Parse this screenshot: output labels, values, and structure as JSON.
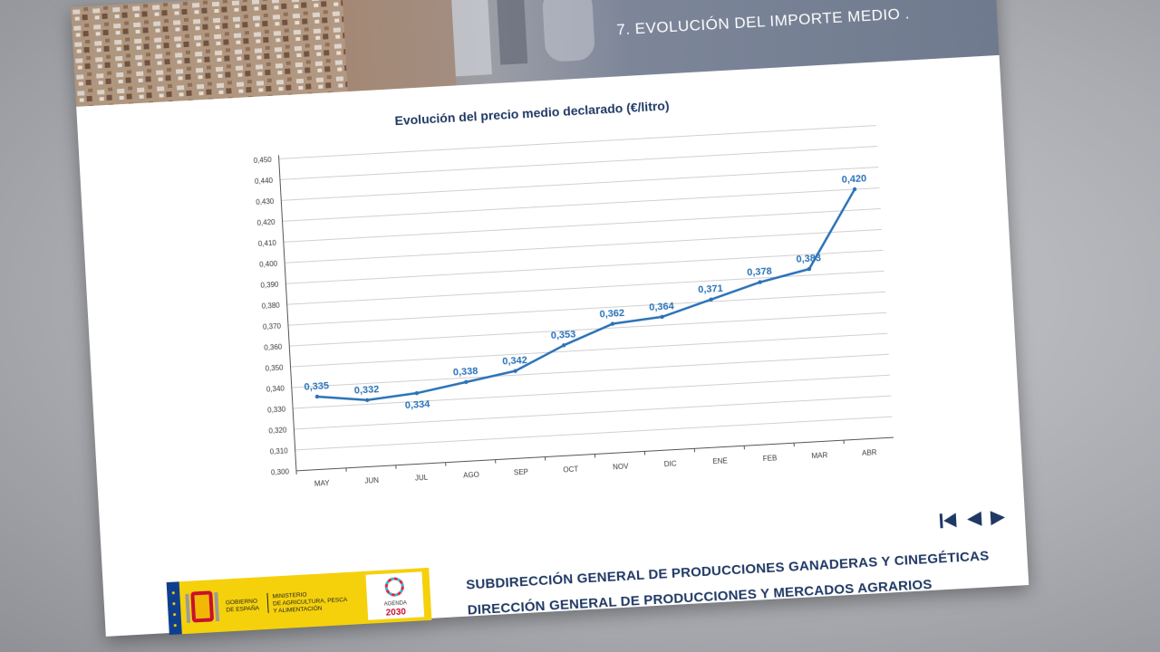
{
  "header": {
    "title": "7.  EVOLUCIÓN DEL IMPORTE MEDIO ."
  },
  "footer": {
    "line1": "SUBDIRECCIÓN GENERAL DE PRODUCCIONES GANADERAS Y CINEGÉTICAS",
    "line2": "DIRECCIÓN GENERAL DE PRODUCCIONES Y MERCADOS AGRARIOS"
  },
  "logo": {
    "gobierno": [
      "GOBIERNO",
      "DE ESPAÑA"
    ],
    "ministerio": [
      "MINISTERIO",
      "DE AGRICULTURA, PESCA",
      "Y ALIMENTACIÓN"
    ],
    "agenda": [
      "AGENDA",
      "2030"
    ]
  },
  "nav": {
    "icons": [
      "first-page-icon",
      "previous-page-icon",
      "next-page-icon"
    ]
  },
  "colors": {
    "line": "#2a72b8",
    "title": "#1f3864",
    "header_bg": "#7c8597",
    "logo_yellow": "#f5d10c"
  },
  "chart_data": {
    "type": "line",
    "title": "Evolución del precio medio declarado (€/litro)",
    "categories": [
      "MAY",
      "JUN",
      "JUL",
      "AGO",
      "SEP",
      "OCT",
      "NOV",
      "DIC",
      "ENE",
      "FEB",
      "MAR",
      "ABR"
    ],
    "series": [
      {
        "values": [
          0.335,
          0.332,
          0.334,
          0.338,
          0.342,
          0.353,
          0.362,
          0.364,
          0.371,
          0.378,
          0.383,
          0.42
        ]
      }
    ],
    "y_ticks": [
      "0,300",
      "0,310",
      "0,320",
      "0,330",
      "0,340",
      "0,350",
      "0,360",
      "0,370",
      "0,380",
      "0,390",
      "0,400",
      "0,410",
      "0,420",
      "0,430",
      "0,440",
      "0,450"
    ],
    "data_labels": [
      "0,335",
      "0,332",
      "0,334",
      "0,338",
      "0,342",
      "0,353",
      "0,362",
      "0,364",
      "0,371",
      "0,378",
      "0,383",
      "0,420"
    ],
    "ylim": [
      0.3,
      0.45
    ],
    "grid": true,
    "legend": "none"
  }
}
